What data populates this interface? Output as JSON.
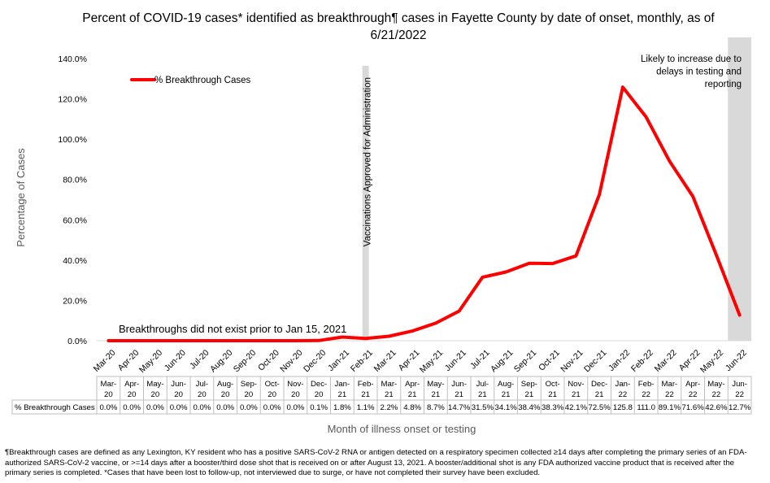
{
  "title_line1": "Percent of COVID-19 cases* identified as breakthrough¶ cases in Fayette County by date of onset, monthly, as of",
  "title_line2": "6/21/2022",
  "footnote_line1": "¶Breakthrough cases are defined as any Lexington, KY resident who has a positive SARS-CoV-2 RNA or antigen detected on a respiratory specimen collected ≥14 days after completing the primary series of an FDA-",
  "footnote_line2": "authorized SARS-CoV-2 vaccine, or >=14 days after a booster/third dose shot that is received on or after August 13, 2021.  A booster/additional shot is any FDA authorized vaccine product that is received after the",
  "footnote_line3": "primary series is completed. *Cases that have been lost to follow-up, not interviewed due to surge, or have not completed their survey have been excluded.",
  "colors": {
    "series": "#ff0000",
    "shade": "#d9d9d9",
    "axis_text": "#595959",
    "grid": "#d9d9d9"
  },
  "chart_data": {
    "type": "line",
    "xlabel": "Month of illness onset or testing",
    "ylabel": "Percentage of Cases",
    "ylim": [
      0,
      140
    ],
    "yticks": [
      "0.0%",
      "20.0%",
      "40.0%",
      "60.0%",
      "80.0%",
      "100.0%",
      "120.0%",
      "140.0%"
    ],
    "legend_position": "top-left",
    "categories": [
      "Mar-20",
      "Apr-20",
      "May-20",
      "Jun-20",
      "Jul-20",
      "Aug-20",
      "Sep-20",
      "Oct-20",
      "Nov-20",
      "Dec-20",
      "Jan-21",
      "Feb-21",
      "Mar-21",
      "Apr-21",
      "May-21",
      "Jun-21",
      "Jul-21",
      "Aug-21",
      "Sep-21",
      "Oct-21",
      "Nov-21",
      "Dec-21",
      "Jan-22",
      "Feb-22",
      "Mar-22",
      "Apr-22",
      "May-22",
      "Jun-22"
    ],
    "series": [
      {
        "name": "% Breakthrough Cases",
        "values": [
          0.0,
          0.0,
          0.0,
          0.0,
          0.0,
          0.0,
          0.0,
          0.0,
          0.0,
          0.1,
          1.8,
          1.1,
          2.2,
          4.8,
          8.7,
          14.7,
          31.5,
          34.1,
          38.4,
          38.3,
          42.1,
          72.5,
          125.8,
          111.0,
          89.1,
          71.6,
          42.6,
          12.7
        ]
      }
    ],
    "table": {
      "header_rows": [
        [
          "Mar-",
          "Apr-",
          "May-",
          "Jun-",
          "Jul-",
          "Aug-",
          "Sep-",
          "Oct-",
          "Nov-",
          "Dec-",
          "Jan-",
          "Feb-",
          "Mar-",
          "Apr-",
          "May-",
          "Jun-",
          "Jul-",
          "Aug-",
          "Sep-",
          "Oct-",
          "Nov-",
          "Dec-",
          "Jan-",
          "Feb-",
          "Mar-",
          "Apr-",
          "May-",
          "Jun-"
        ],
        [
          "20",
          "20",
          "20",
          "20",
          "20",
          "20",
          "20",
          "20",
          "20",
          "20",
          "21",
          "21",
          "21",
          "21",
          "21",
          "21",
          "21",
          "21",
          "21",
          "21",
          "21",
          "21",
          "22",
          "22",
          "22",
          "22",
          "22",
          "22"
        ]
      ],
      "row_label": "% Breakthrough Cases",
      "cells": [
        "0.0%",
        "0.0%",
        "0.0%",
        "0.0%",
        "0.0%",
        "0.0%",
        "0.0%",
        "0.0%",
        "0.0%",
        "0.1%",
        "1.8%",
        "1.1%",
        "2.2%",
        "4.8%",
        "8.7%",
        "14.7%",
        "31.5%",
        "34.1%",
        "38.4%",
        "38.3%",
        "42.1%",
        "72.5%",
        "125.8",
        "111.0",
        "89.1%",
        "71.6%",
        "42.6%",
        "12.7%"
      ]
    },
    "annotations": {
      "vaccine_line_category": "Feb-21",
      "vaccine_text": "Vaccinations Approved for Administration",
      "breakthrough_text": "Breakthroughs did not exist prior to Jan 15, 2021",
      "shaded_category": "Jun-22",
      "shaded_text": [
        "Likely to increase due to",
        "delays in testing and",
        "reporting"
      ]
    }
  }
}
